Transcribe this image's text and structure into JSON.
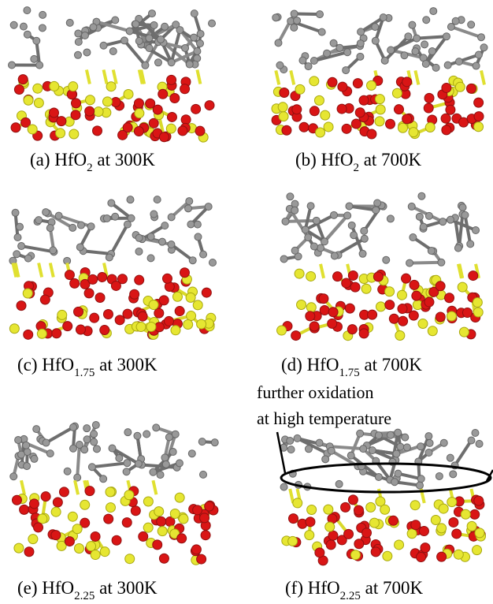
{
  "panels": [
    {
      "prefix": "(a) HfO",
      "sub": "2",
      "suffix": " at 300K"
    },
    {
      "prefix": "(b) HfO",
      "sub": "2",
      "suffix": " at 700K"
    },
    {
      "prefix": "(c) HfO",
      "sub": "1.75",
      "suffix": " at 300K"
    },
    {
      "prefix": "(d) HfO",
      "sub": "1.75",
      "suffix": " at 700K"
    },
    {
      "prefix": "(e) HfO",
      "sub": "2.25",
      "suffix": " at 300K"
    },
    {
      "prefix": "(f) HfO",
      "sub": "2.25",
      "suffix": " at 700K"
    }
  ],
  "annotation": {
    "line1": "further oxidation",
    "line2": "at high temperature"
  }
}
